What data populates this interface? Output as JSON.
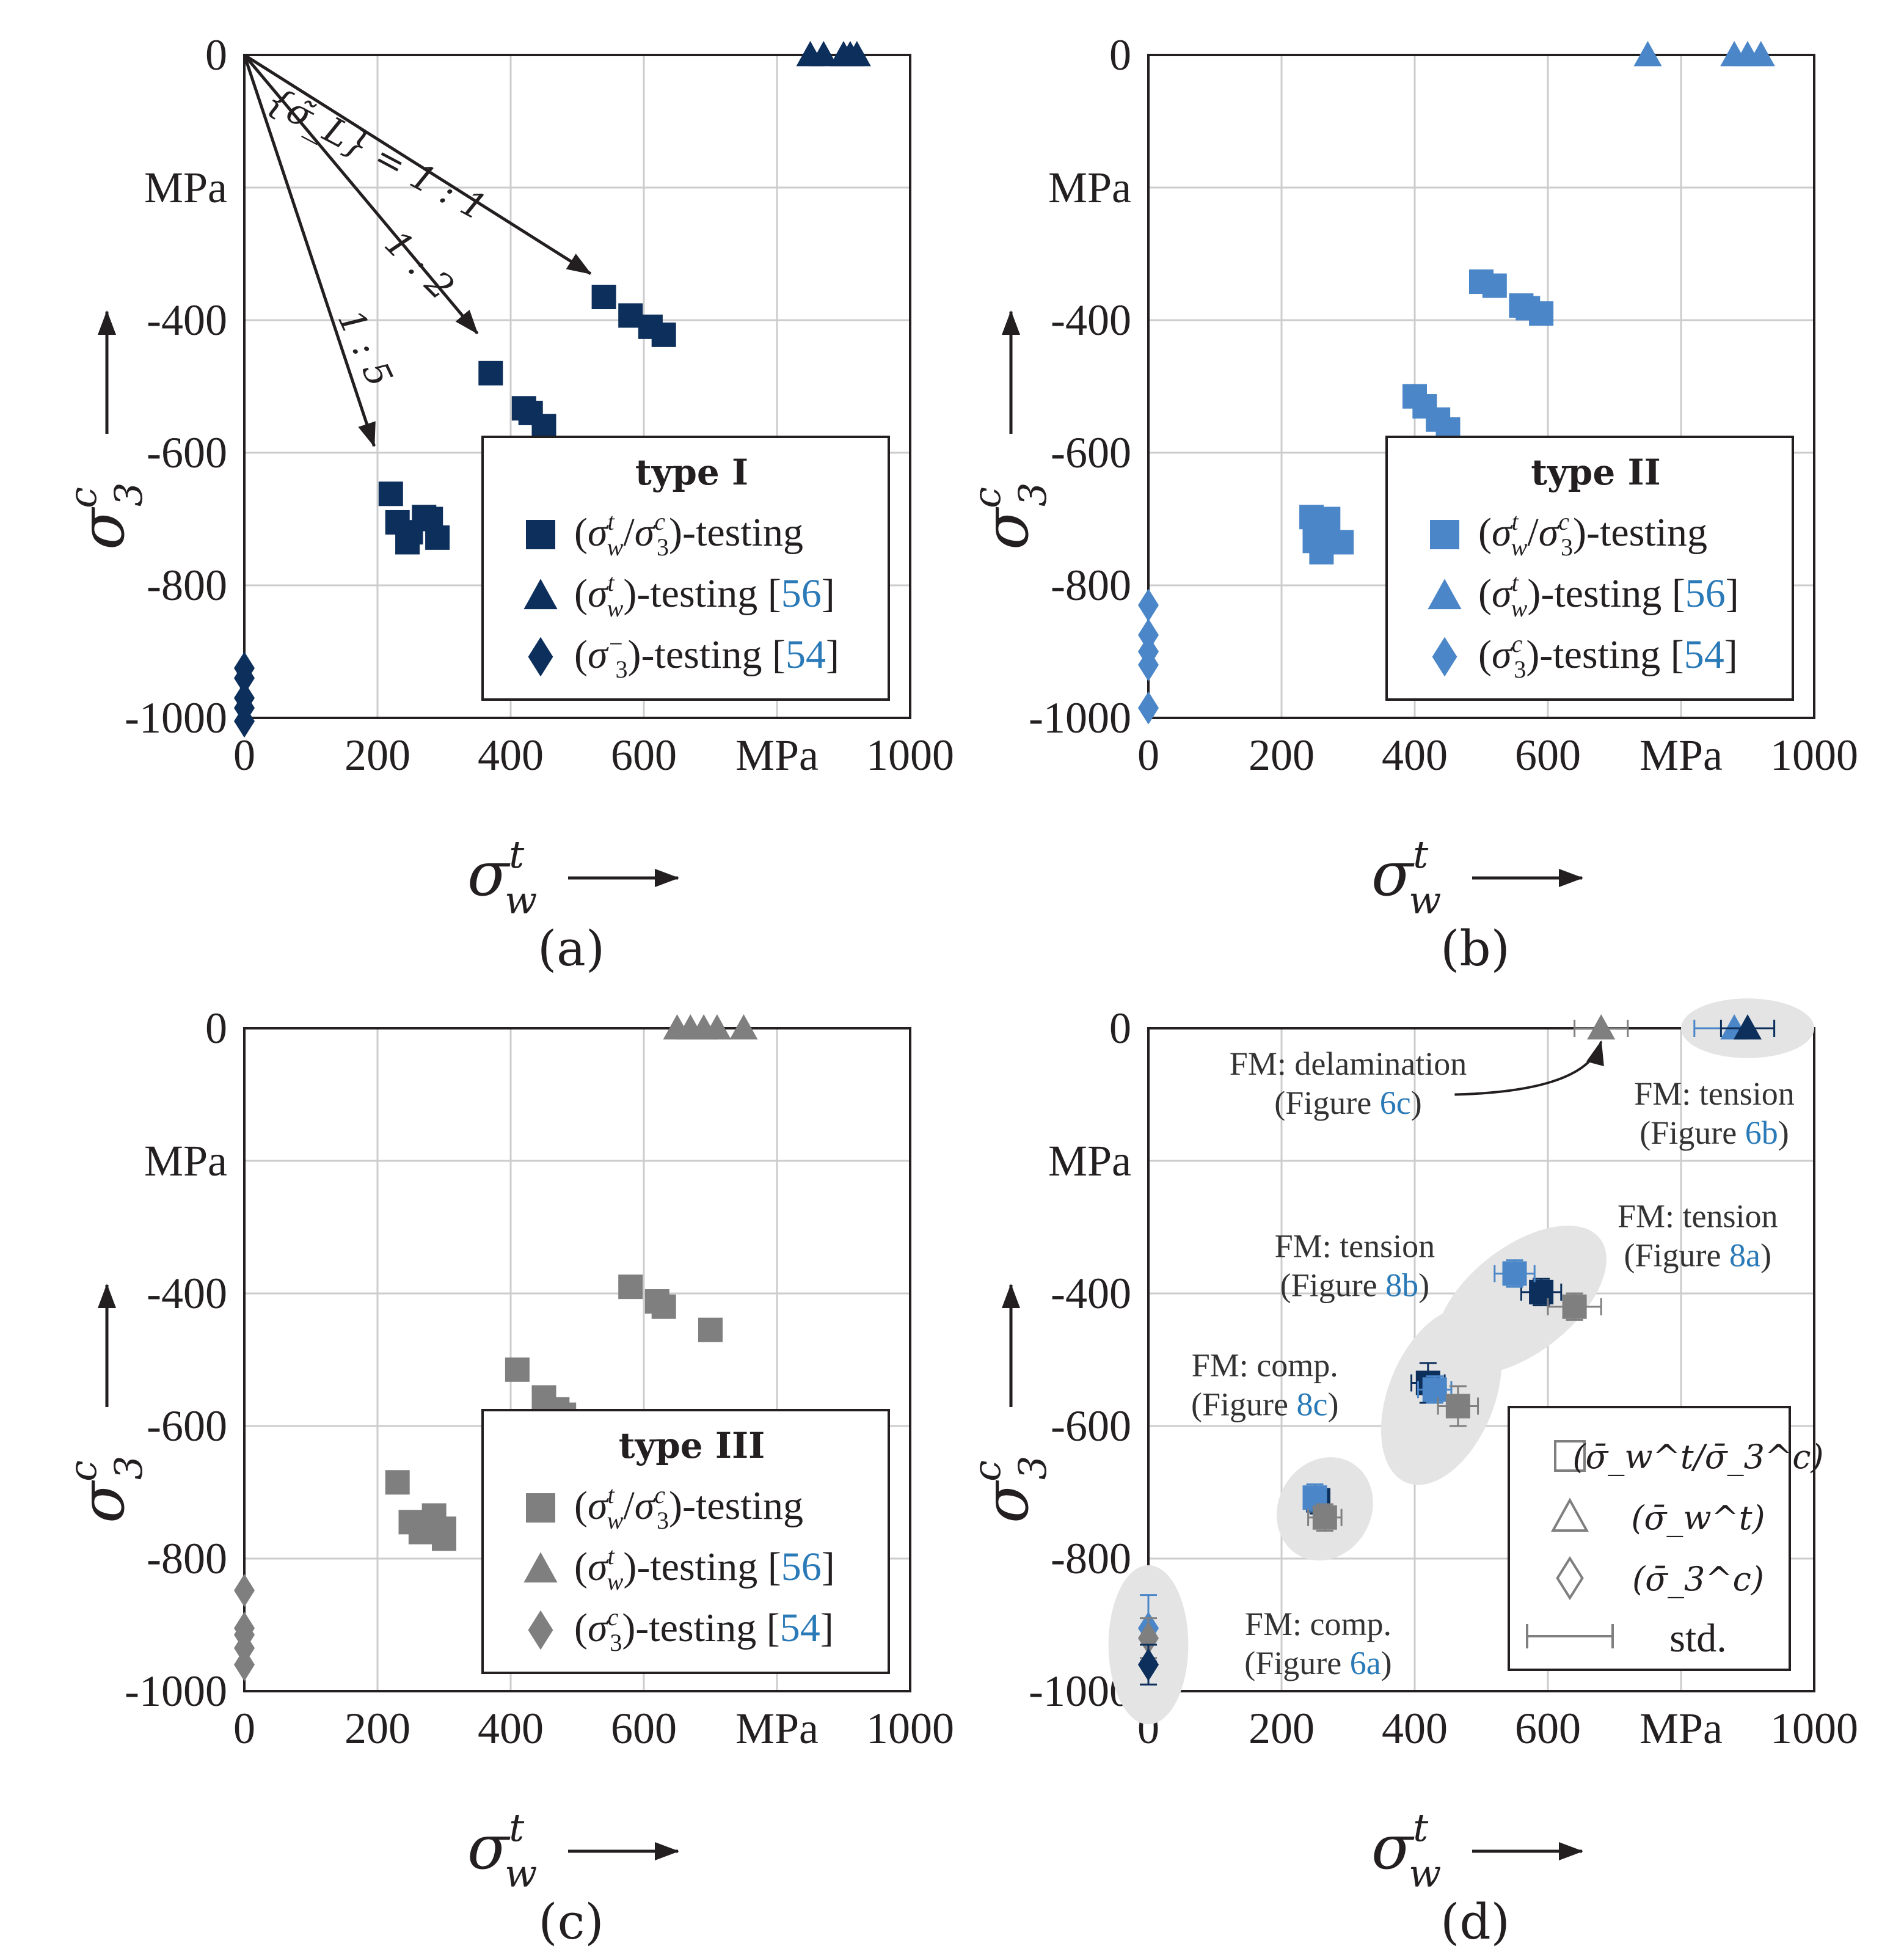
{
  "figure": {
    "colors": {
      "type1": "#0d2f5c",
      "type2": "#4a86c8",
      "type3": "#7f7f7f",
      "link": "#2a7ab8",
      "ink": "#231f20",
      "grid": "#cccccc"
    },
    "axis": {
      "x_unit": "MPa",
      "y_unit": "MPa",
      "x_symbol_base": "σ",
      "x_symbol_sup": "t",
      "x_symbol_sub": "w",
      "y_symbol_base": "σ",
      "y_symbol_sup": "c",
      "y_symbol_sub": "3",
      "x_ticks": [
        "0",
        "200",
        "400",
        "600",
        "1000"
      ],
      "y_ticks": [
        "0",
        "-400",
        "-600",
        "-800",
        "-1000"
      ]
    },
    "legend_rows": {
      "sq_label": "-testing",
      "tri_label": "-testing",
      "dia_label": "-testing",
      "ref_56": "56",
      "ref_54": "54"
    },
    "panel_d_legend": {
      "sq": "(σ̄ₜ/σ̄꜀)",
      "std": "std."
    }
  },
  "chart_data": [
    {
      "id": "a",
      "panel_label": "(a)",
      "type": "scatter",
      "legend_title": "type I",
      "xlim": [
        0,
        1000
      ],
      "ylim": [
        -1000,
        0
      ],
      "xlabel": "σ_w^t",
      "ylabel": "σ_3^c",
      "ratio_labels": [
        "{σ̃_L} = 1 : 1",
        "1 : 2",
        "1 : 5"
      ],
      "series": [
        {
          "name": "(σ_w^t/σ_3^c)-testing",
          "marker": "square",
          "points": [
            [
              540,
              -365
            ],
            [
              580,
              -393
            ],
            [
              610,
              -410
            ],
            [
              630,
              -422
            ],
            [
              370,
              -480
            ],
            [
              420,
              -533
            ],
            [
              430,
              -540
            ],
            [
              450,
              -560
            ],
            [
              220,
              -662
            ],
            [
              230,
              -705
            ],
            [
              250,
              -720
            ],
            [
              245,
              -735
            ],
            [
              270,
              -697
            ],
            [
              280,
              -700
            ],
            [
              290,
              -728
            ]
          ]
        },
        {
          "name": "(σ_w^t)-testing [56]",
          "marker": "triangle",
          "points": [
            [
              850,
              0
            ],
            [
              870,
              0
            ],
            [
              900,
              0
            ],
            [
              910,
              0
            ],
            [
              920,
              0
            ]
          ]
        },
        {
          "name": "(σ_3^-)-testing [54]",
          "marker": "diamond",
          "points": [
            [
              0,
              -925
            ],
            [
              0,
              -940
            ],
            [
              0,
              -970
            ],
            [
              0,
              -985
            ],
            [
              0,
              -1005
            ]
          ]
        }
      ],
      "arrows": [
        {
          "to": [
            520,
            -330
          ]
        },
        {
          "to": [
            350,
            -420
          ]
        },
        {
          "to": [
            195,
            -590
          ]
        }
      ]
    },
    {
      "id": "b",
      "panel_label": "(b)",
      "type": "scatter",
      "legend_title": "type II",
      "xlim": [
        0,
        1000
      ],
      "ylim": [
        -1000,
        0
      ],
      "xlabel": "σ_w^t",
      "ylabel": "σ_3^c",
      "series": [
        {
          "name": "(σ_w^t/σ_3^c)-testing",
          "marker": "square",
          "points": [
            [
              500,
              -342
            ],
            [
              520,
              -348
            ],
            [
              560,
              -378
            ],
            [
              570,
              -382
            ],
            [
              590,
              -390
            ],
            [
              400,
              -515
            ],
            [
              415,
              -530
            ],
            [
              435,
              -550
            ],
            [
              450,
              -565
            ],
            [
              245,
              -697
            ],
            [
              255,
              -718
            ],
            [
              250,
              -733
            ],
            [
              260,
              -750
            ],
            [
              270,
              -700
            ],
            [
              290,
              -735
            ]
          ]
        },
        {
          "name": "(σ_w^t)-testing [56]",
          "marker": "triangle",
          "points": [
            [
              750,
              0
            ],
            [
              880,
              0
            ],
            [
              900,
              0
            ],
            [
              920,
              0
            ]
          ]
        },
        {
          "name": "(σ_3^c)-testing [54]",
          "marker": "diamond",
          "points": [
            [
              0,
              -830
            ],
            [
              0,
              -875
            ],
            [
              0,
              -900
            ],
            [
              0,
              -920
            ],
            [
              0,
              -985
            ]
          ]
        }
      ]
    },
    {
      "id": "c",
      "panel_label": "(c)",
      "type": "scatter",
      "legend_title": "type III",
      "xlim": [
        0,
        1000
      ],
      "ylim": [
        -1000,
        0
      ],
      "xlabel": "σ_w^t",
      "ylabel": "σ_3^c",
      "series": [
        {
          "name": "(σ_w^t/σ_3^c)-testing",
          "marker": "square",
          "points": [
            [
              580,
              -390
            ],
            [
              620,
              -412
            ],
            [
              630,
              -420
            ],
            [
              700,
              -455
            ],
            [
              410,
              -515
            ],
            [
              450,
              -557
            ],
            [
              470,
              -575
            ],
            [
              480,
              -583
            ],
            [
              230,
              -685
            ],
            [
              250,
              -745
            ],
            [
              265,
              -760
            ],
            [
              285,
              -735
            ],
            [
              300,
              -755
            ],
            [
              300,
              -770
            ]
          ]
        },
        {
          "name": "(σ_w^t)-testing [56]",
          "marker": "triangle",
          "points": [
            [
              650,
              0
            ],
            [
              670,
              0
            ],
            [
              690,
              0
            ],
            [
              710,
              0
            ],
            [
              750,
              0
            ]
          ]
        },
        {
          "name": "(σ_3^c)-testing [54]",
          "marker": "diamond",
          "points": [
            [
              0,
              -848
            ],
            [
              0,
              -905
            ],
            [
              0,
              -915
            ],
            [
              0,
              -935
            ],
            [
              0,
              -960
            ]
          ]
        }
      ]
    },
    {
      "id": "d",
      "panel_label": "(d)",
      "type": "scatter",
      "xlim": [
        0,
        1000
      ],
      "ylim": [
        -1000,
        0
      ],
      "xlabel": "σ_w^t",
      "ylabel": "σ_3^c",
      "legend": [
        "(σ̄_w^t/σ̄_3^c)",
        "(σ̄_w^t)",
        "(σ̄_3^c)",
        "std."
      ],
      "annotations": [
        {
          "line1": "FM: delamination",
          "line2a": "(Figure ",
          "ref": "6c",
          "line2b": ")"
        },
        {
          "line1": "FM: tension",
          "line2a": "(Figure ",
          "ref": "6b",
          "line2b": ")"
        },
        {
          "line1": "FM: tension",
          "line2a": "(Figure ",
          "ref": "8b",
          "line2b": ")"
        },
        {
          "line1": "FM: tension",
          "line2a": "(Figure ",
          "ref": "8a",
          "line2b": ")"
        },
        {
          "line1": "FM: comp.",
          "line2a": "(Figure ",
          "ref": "8c",
          "line2b": ")"
        },
        {
          "line1": "FM: comp.",
          "line2a": "(Figure ",
          "ref": "6a",
          "line2b": ")"
        }
      ],
      "means": [
        {
          "series": "type I",
          "marker": "square",
          "x": 590,
          "y": -398,
          "xerr": 30,
          "yerr": 20
        },
        {
          "series": "type II",
          "marker": "square",
          "x": 550,
          "y": -370,
          "xerr": 30,
          "yerr": 20
        },
        {
          "series": "type III",
          "marker": "square",
          "x": 640,
          "y": -420,
          "xerr": 40,
          "yerr": 20
        },
        {
          "series": "type I",
          "marker": "square",
          "x": 420,
          "y": -535,
          "xerr": 25,
          "yerr": 30
        },
        {
          "series": "type II",
          "marker": "square",
          "x": 430,
          "y": -545,
          "xerr": 25,
          "yerr": 20
        },
        {
          "series": "type III",
          "marker": "square",
          "x": 465,
          "y": -570,
          "xerr": 30,
          "yerr": 30
        },
        {
          "series": "type I",
          "marker": "square",
          "x": 255,
          "y": -712,
          "xerr": 15,
          "yerr": 20
        },
        {
          "series": "type II",
          "marker": "square",
          "x": 250,
          "y": -708,
          "xerr": 15,
          "yerr": 20
        },
        {
          "series": "type III",
          "marker": "square",
          "x": 265,
          "y": -738,
          "xerr": 25,
          "yerr": 20
        },
        {
          "series": "type III",
          "marker": "triangle",
          "x": 680,
          "y": 0,
          "xerr": 40,
          "yerr": 0
        },
        {
          "series": "type II",
          "marker": "triangle",
          "x": 880,
          "y": 0,
          "xerr": 60,
          "yerr": 0
        },
        {
          "series": "type I",
          "marker": "triangle",
          "x": 900,
          "y": 0,
          "xerr": 40,
          "yerr": 0
        },
        {
          "series": "type II",
          "marker": "diamond",
          "x": 0,
          "y": -905,
          "xerr": 0,
          "yerr": 50
        },
        {
          "series": "type III",
          "marker": "diamond",
          "x": 0,
          "y": -920,
          "xerr": 0,
          "yerr": 30
        },
        {
          "series": "type I",
          "marker": "diamond",
          "x": 0,
          "y": -960,
          "xerr": 0,
          "yerr": 30
        }
      ]
    }
  ]
}
